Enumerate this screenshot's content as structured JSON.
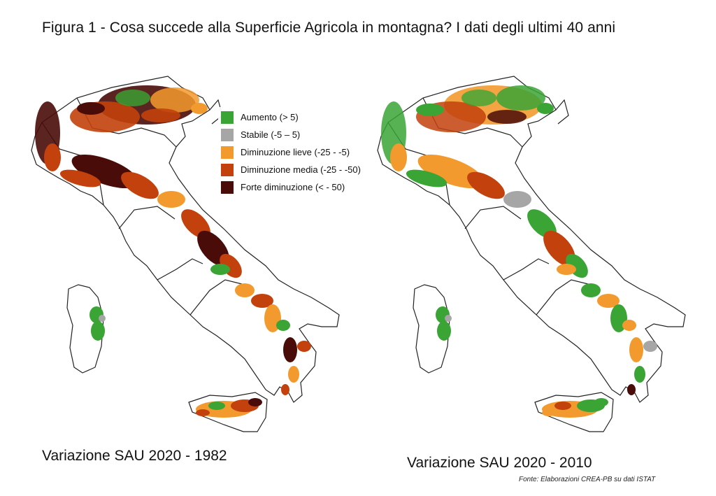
{
  "title": "Figura 1 - Cosa succede alla Superficie Agricola in montagna? I dati degli ultimi 40 anni",
  "legend": {
    "items": [
      {
        "label": "Aumento (> 5)",
        "color": "#3aa535"
      },
      {
        "label": "Stabile (-5 – 5)",
        "color": "#a6a6a6"
      },
      {
        "label": "Diminuzione lieve (-25 - -5)",
        "color": "#f39a2e"
      },
      {
        "label": "Diminuzione media (-25 - -50)",
        "color": "#c2410c"
      },
      {
        "label": "Forte diminuzione (< - 50)",
        "color": "#4a0c08"
      }
    ]
  },
  "maps": {
    "left": {
      "caption": "Variazione SAU 2020 - 1982",
      "dominant_classes": [
        "Forte diminuzione",
        "Diminuzione media",
        "Diminuzione lieve"
      ]
    },
    "right": {
      "caption": "Variazione SAU 2020 - 2010",
      "dominant_classes": [
        "Diminuzione lieve",
        "Aumento",
        "Diminuzione media"
      ]
    }
  },
  "source": "Fonte: Elaborazioni CREA-PB su dati ISTAT",
  "colors": {
    "outline": "#222222",
    "background": "#ffffff"
  }
}
